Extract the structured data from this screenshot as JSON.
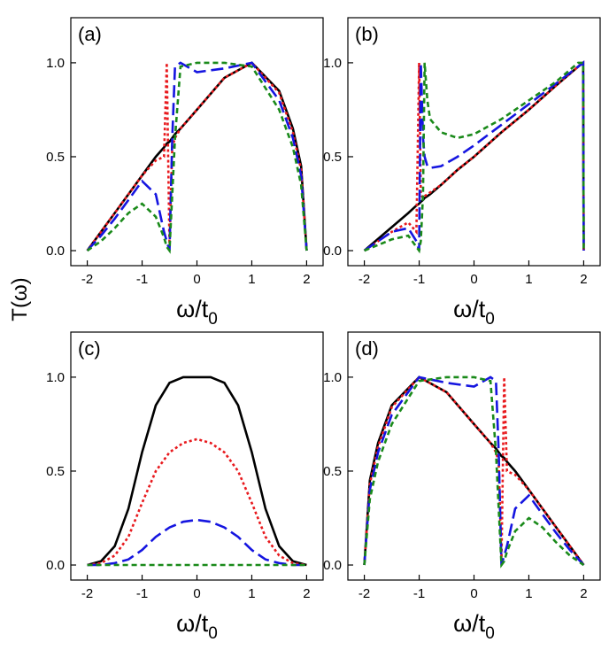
{
  "chart_data": [
    {
      "type": "line",
      "label": "(a)",
      "ylabel": "T(ω)",
      "xlabel": "ω/t",
      "xlabel_subscript": "0",
      "xlim": [
        -2.3,
        2.3
      ],
      "ylim": [
        -0.08,
        1.24
      ],
      "xticks": [
        -2,
        -1,
        0,
        1,
        2
      ],
      "yticks": [
        {
          "value": 0,
          "label": "0.0"
        },
        {
          "value": 0.5,
          "label": "0.5"
        },
        {
          "value": 1,
          "label": "1.0"
        }
      ],
      "x": [
        -2,
        -1.75,
        -1.5,
        -1.25,
        -1,
        -0.75,
        -0.6,
        -0.55,
        -0.5,
        -0.45,
        -0.4,
        -0.3,
        0,
        0.5,
        1,
        1.5,
        1.75,
        1.9,
        2
      ],
      "series": [
        {
          "color": "#000000",
          "dash": "none",
          "values": [
            0,
            0.1,
            0.2,
            0.3,
            0.4,
            0.5,
            0.55,
            0.57,
            0.58,
            0.6,
            0.62,
            0.65,
            0.75,
            0.92,
            1.0,
            0.85,
            0.65,
            0.45,
            0
          ]
        },
        {
          "color": "#e8191d",
          "dash": "3 3",
          "values": [
            0,
            0.1,
            0.2,
            0.3,
            0.4,
            0.48,
            0.5,
            1.0,
            0.02,
            0.55,
            0.6,
            0.65,
            0.75,
            0.92,
            1.0,
            0.84,
            0.63,
            0.43,
            0
          ]
        },
        {
          "color": "#1515e0",
          "dash": "14 6",
          "values": [
            0,
            0.08,
            0.17,
            0.27,
            0.37,
            0.3,
            0.1,
            0.05,
            0,
            0.6,
            0.98,
            1.0,
            0.95,
            0.97,
            1.0,
            0.8,
            0.6,
            0.4,
            0
          ]
        },
        {
          "color": "#1a8a1a",
          "dash": "6 4",
          "values": [
            0,
            0.05,
            0.12,
            0.2,
            0.25,
            0.18,
            0.07,
            0.02,
            0,
            0.3,
            0.6,
            0.98,
            1.0,
            1.0,
            0.98,
            0.75,
            0.55,
            0.35,
            0
          ]
        }
      ]
    },
    {
      "type": "line",
      "label": "(b)",
      "xlabel": "ω/t",
      "xlabel_subscript": "0",
      "xlim": [
        -2.3,
        2.3
      ],
      "ylim": [
        -0.08,
        1.24
      ],
      "xticks": [
        -2,
        -1,
        0,
        1,
        2
      ],
      "yticks": [
        {
          "value": 0,
          "label": "0.0"
        },
        {
          "value": 0.5,
          "label": "0.5"
        },
        {
          "value": 1,
          "label": "1.0"
        }
      ],
      "x": [
        -2,
        -1.5,
        -1.2,
        -1.05,
        -1,
        -0.97,
        -0.93,
        -0.9,
        -0.85,
        -0.8,
        -0.6,
        -0.3,
        0,
        0.5,
        1,
        1.5,
        1.9,
        1.99,
        2
      ],
      "series": [
        {
          "color": "#000000",
          "dash": "none",
          "values": [
            0,
            0.125,
            0.2,
            0.24,
            0.25,
            0.26,
            0.27,
            0.28,
            0.29,
            0.3,
            0.35,
            0.43,
            0.5,
            0.63,
            0.75,
            0.88,
            0.98,
            1.0,
            0
          ]
        },
        {
          "color": "#e8191d",
          "dash": "3 3",
          "values": [
            0,
            0.1,
            0.15,
            0.1,
            1.0,
            0.3,
            0.28,
            0.29,
            0.3,
            0.31,
            0.35,
            0.43,
            0.5,
            0.63,
            0.75,
            0.88,
            0.98,
            1.0,
            0
          ]
        },
        {
          "color": "#1515e0",
          "dash": "14 6",
          "values": [
            0,
            0.1,
            0.12,
            0.05,
            0,
            1.0,
            0.6,
            0.5,
            0.45,
            0.44,
            0.45,
            0.5,
            0.56,
            0.67,
            0.78,
            0.89,
            0.98,
            1.0,
            0
          ]
        },
        {
          "color": "#1a8a1a",
          "dash": "6 4",
          "values": [
            0,
            0.06,
            0.08,
            0.02,
            0,
            0.05,
            0.3,
            1.0,
            0.8,
            0.7,
            0.63,
            0.6,
            0.62,
            0.7,
            0.8,
            0.9,
            1.0,
            1.0,
            0
          ]
        }
      ]
    },
    {
      "type": "line",
      "label": "(c)",
      "xlabel": "ω/t",
      "xlabel_subscript": "0",
      "xlim": [
        -2.3,
        2.3
      ],
      "ylim": [
        -0.08,
        1.24
      ],
      "xticks": [
        -2,
        -1,
        0,
        1,
        2
      ],
      "yticks": [
        {
          "value": 0,
          "label": "0.0"
        },
        {
          "value": 0.5,
          "label": "0.5"
        },
        {
          "value": 1,
          "label": "1.0"
        }
      ],
      "x": [
        -2,
        -1.75,
        -1.5,
        -1.25,
        -1,
        -0.75,
        -0.5,
        -0.25,
        0,
        0.25,
        0.5,
        0.75,
        1,
        1.25,
        1.5,
        1.75,
        2
      ],
      "series": [
        {
          "color": "#000000",
          "dash": "none",
          "values": [
            0,
            0.02,
            0.1,
            0.3,
            0.6,
            0.85,
            0.97,
            1.0,
            1.0,
            1.0,
            0.97,
            0.85,
            0.6,
            0.3,
            0.1,
            0.02,
            0
          ]
        },
        {
          "color": "#e8191d",
          "dash": "3 3",
          "values": [
            0,
            0.01,
            0.05,
            0.15,
            0.33,
            0.5,
            0.6,
            0.65,
            0.67,
            0.65,
            0.6,
            0.5,
            0.33,
            0.15,
            0.05,
            0.01,
            0
          ]
        },
        {
          "color": "#1515e0",
          "dash": "14 6",
          "values": [
            0,
            0,
            0.01,
            0.03,
            0.08,
            0.15,
            0.2,
            0.23,
            0.24,
            0.23,
            0.2,
            0.15,
            0.08,
            0.03,
            0.01,
            0,
            0
          ]
        },
        {
          "color": "#1a8a1a",
          "dash": "6 4",
          "values": [
            0,
            0,
            0,
            0,
            0,
            0,
            0,
            0,
            0,
            0,
            0,
            0,
            0,
            0,
            0,
            0,
            0
          ]
        }
      ]
    },
    {
      "type": "line",
      "label": "(d)",
      "xlabel": "ω/t",
      "xlabel_subscript": "0",
      "xlim": [
        -2.3,
        2.3
      ],
      "ylim": [
        -0.08,
        1.24
      ],
      "xticks": [
        -2,
        -1,
        0,
        1,
        2
      ],
      "yticks": [
        {
          "value": 0,
          "label": "0.0"
        },
        {
          "value": 0.5,
          "label": "0.5"
        },
        {
          "value": 1,
          "label": "1.0"
        }
      ],
      "x": [
        -2,
        -1.9,
        -1.75,
        -1.5,
        -1,
        -0.5,
        0,
        0.3,
        0.4,
        0.45,
        0.5,
        0.55,
        0.6,
        0.75,
        1,
        1.25,
        1.5,
        1.75,
        2
      ],
      "series": [
        {
          "color": "#000000",
          "dash": "none",
          "values": [
            0,
            0.45,
            0.65,
            0.85,
            1.0,
            0.92,
            0.75,
            0.65,
            0.62,
            0.6,
            0.58,
            0.57,
            0.55,
            0.5,
            0.4,
            0.3,
            0.2,
            0.1,
            0
          ]
        },
        {
          "color": "#e8191d",
          "dash": "3 3",
          "values": [
            0,
            0.43,
            0.63,
            0.84,
            1.0,
            0.92,
            0.75,
            0.65,
            0.6,
            0.55,
            0.02,
            1.0,
            0.5,
            0.48,
            0.4,
            0.3,
            0.2,
            0.1,
            0
          ]
        },
        {
          "color": "#1515e0",
          "dash": "14 6",
          "values": [
            0,
            0.4,
            0.6,
            0.8,
            1.0,
            0.97,
            0.95,
            1.0,
            0.98,
            0.6,
            0,
            0.05,
            0.1,
            0.3,
            0.37,
            0.27,
            0.17,
            0.08,
            0
          ]
        },
        {
          "color": "#1a8a1a",
          "dash": "6 4",
          "values": [
            0,
            0.35,
            0.55,
            0.75,
            0.98,
            1.0,
            1.0,
            0.98,
            0.6,
            0.3,
            0,
            0.02,
            0.07,
            0.18,
            0.25,
            0.2,
            0.12,
            0.05,
            0
          ]
        }
      ]
    }
  ]
}
